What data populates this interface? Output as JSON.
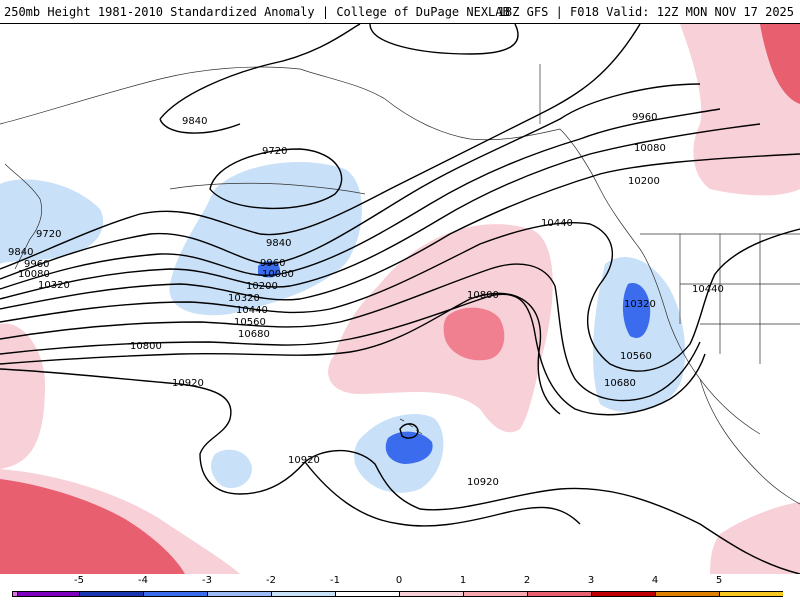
{
  "header": {
    "title": "250mb Height 1981-2010 Standardized Anomaly | College of DuPage NEXLAB",
    "run_info": "18Z GFS | F018 Valid: 12Z MON NOV 17 2025"
  },
  "contour_labels": [
    "9840",
    "9720",
    "9720",
    "9840",
    "9960",
    "10080",
    "10320",
    "9840",
    "9960",
    "10080",
    "10200",
    "10320",
    "10440",
    "10560",
    "10680",
    "10800",
    "10920",
    "10920",
    "10920",
    "10800",
    "9960",
    "10080",
    "10200",
    "10440",
    "10320",
    "10440",
    "10560",
    "10680"
  ],
  "colorbar": {
    "ticks": [
      "-5",
      "-4",
      "-3",
      "-2",
      "-1",
      "0",
      "1",
      "2",
      "3",
      "4",
      "5"
    ],
    "colors": [
      "#e070e0",
      "#8000c0",
      "#1838b0",
      "#3c6cee",
      "#9cbcf8",
      "#c8e0f8",
      "#ffffff",
      "#f8d0d8",
      "#f8a8b0",
      "#e86070",
      "#c00000",
      "#e08000",
      "#f8c820"
    ]
  },
  "colors": {
    "blue_light": "#c8e0f8",
    "blue_mid": "#3c6cee",
    "pink_light": "#f8d0d8",
    "pink_mid": "#f08090",
    "red": "#e86070"
  }
}
